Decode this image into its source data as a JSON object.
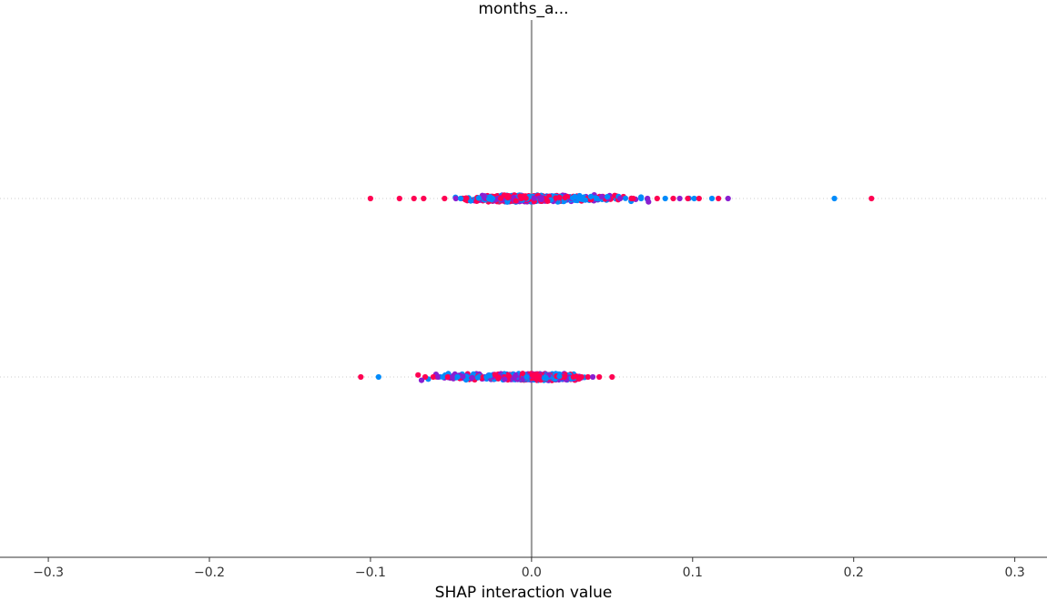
{
  "chart_data": {
    "type": "scatter",
    "subtype": "shap-interaction-beeswarm",
    "title": "months_a...",
    "xlabel": "SHAP interaction value",
    "ylabel": "",
    "xlim": [
      -0.33,
      0.32
    ],
    "xticks": [
      -0.3,
      -0.2,
      -0.1,
      0.0,
      0.1,
      0.2,
      0.3
    ],
    "xtick_labels": [
      "−0.3",
      "−0.2",
      "−0.1",
      "0.0",
      "0.1",
      "0.2",
      "0.3"
    ],
    "grid": false,
    "legend": "none",
    "colors": {
      "high": "#ff0052",
      "mid": "#8a1fd0",
      "low": "#008bfb",
      "zero_line": "#999999",
      "row_line": "#cccccc",
      "axis": "#333333"
    },
    "rows": [
      {
        "name": "",
        "center": -0.012,
        "core_width": 0.022,
        "max_spread": 0.105,
        "tail_negative": [
          -0.1,
          -0.082,
          -0.073,
          -0.067,
          -0.054,
          -0.047,
          -0.044
        ],
        "tail_positive": [
          0.055,
          0.062,
          0.068,
          0.072,
          0.078,
          0.083,
          0.088,
          0.092,
          0.097,
          0.101,
          0.104,
          0.112,
          0.116,
          0.122,
          0.188,
          0.211
        ],
        "tail_positive_colors": [
          "mid",
          "high",
          "low",
          "mid",
          "high",
          "low",
          "high",
          "mid",
          "high",
          "low",
          "high",
          "low",
          "high",
          "mid",
          "low",
          "high"
        ],
        "tail_negative_colors": [
          "high",
          "high",
          "high",
          "high",
          "high",
          "mid",
          "low"
        ],
        "skew": "right"
      },
      {
        "name": "",
        "center": 0.006,
        "core_width": 0.018,
        "max_spread": 0.105,
        "tail_negative": [
          -0.106,
          -0.095,
          -0.061,
          -0.058,
          -0.055,
          -0.052,
          -0.049,
          -0.046
        ],
        "tail_positive": [
          0.026,
          0.031,
          0.035,
          0.038,
          0.042,
          0.05
        ],
        "tail_positive_colors": [
          "high",
          "high",
          "high",
          "mid",
          "high",
          "high"
        ],
        "tail_negative_colors": [
          "high",
          "low",
          "high",
          "mid",
          "low",
          "high",
          "mid",
          "low"
        ],
        "skew": "left"
      }
    ]
  }
}
